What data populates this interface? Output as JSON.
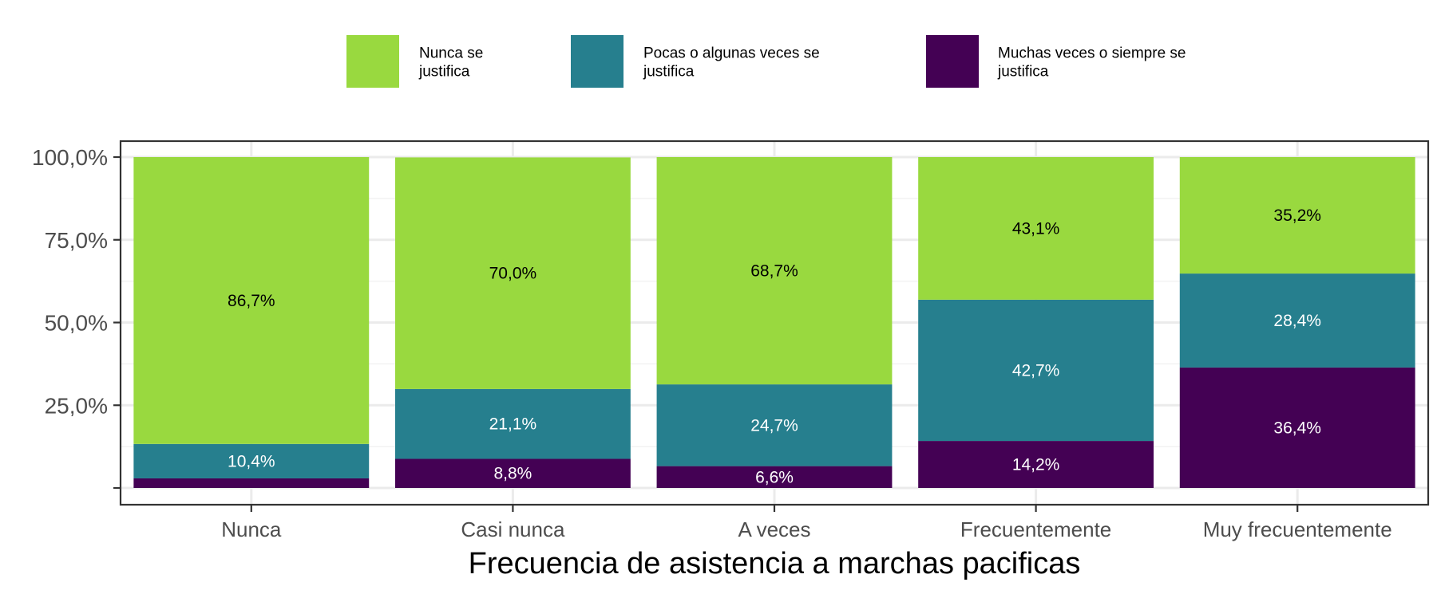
{
  "chart_data": {
    "type": "bar",
    "stacked": true,
    "categories": [
      "Nunca",
      "Casi nunca",
      "A veces",
      "Frecuentemente",
      "Muy frecuentemente"
    ],
    "series": [
      {
        "name": "Nunca se justifica",
        "color": "#99d93f",
        "values": [
          86.7,
          70.0,
          68.7,
          43.1,
          35.2
        ],
        "labels": [
          "86,7%",
          "70,0%",
          "68,7%",
          "43,1%",
          "35,2%"
        ],
        "label_color": "#000000"
      },
      {
        "name": "Pocas o algunas veces se justifica",
        "color": "#267f8e",
        "values": [
          10.4,
          21.1,
          24.7,
          42.7,
          28.4
        ],
        "labels": [
          "10,4%",
          "21,1%",
          "24,7%",
          "42,7%",
          "28,4%"
        ],
        "label_color": "#ffffff"
      },
      {
        "name": "Muchas veces o siempre se justifica",
        "color": "#440154",
        "values": [
          2.9,
          8.8,
          6.6,
          14.2,
          36.4
        ],
        "labels": [
          "",
          "8,8%",
          "6,6%",
          "14,2%",
          "36,4%"
        ],
        "label_color": "#ffffff"
      }
    ],
    "xlabel": "Frecuencia de asistencia a marchas pacificas",
    "ylabel": "",
    "ylim": [
      0,
      100
    ],
    "yticks": [
      25,
      50,
      75,
      100
    ],
    "ytick_labels": [
      "25,0%",
      "50,0%",
      "75,0%",
      "100,0%"
    ],
    "grid": true,
    "legend_position": "top"
  }
}
